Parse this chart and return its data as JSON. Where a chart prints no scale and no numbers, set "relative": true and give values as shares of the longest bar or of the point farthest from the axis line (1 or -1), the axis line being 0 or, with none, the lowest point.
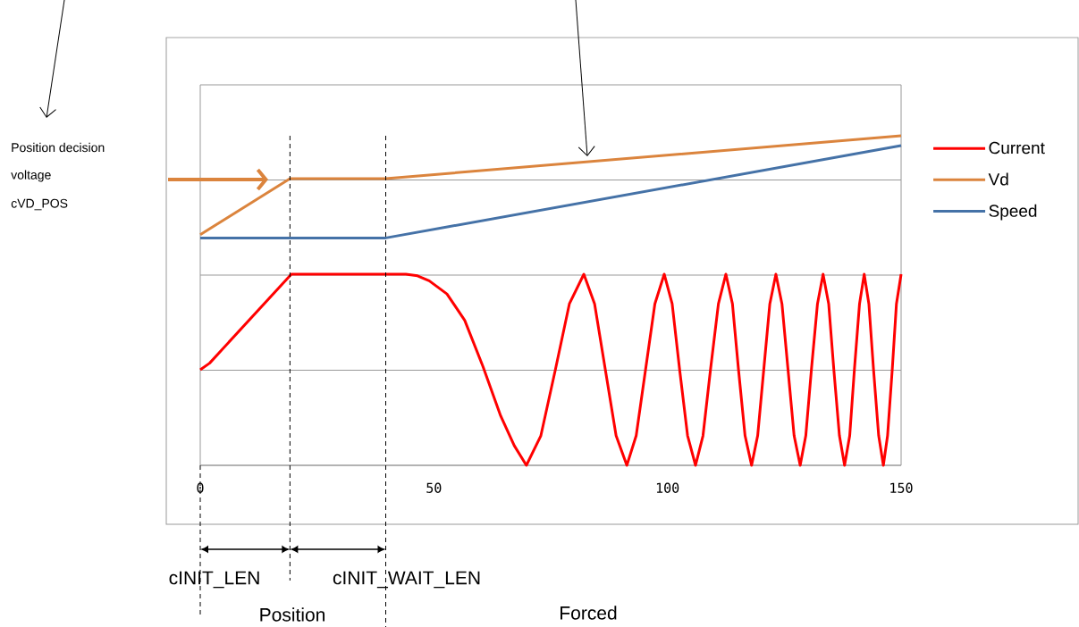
{
  "chart_data": {
    "type": "line",
    "relative": true,
    "xlim": [
      0,
      150
    ],
    "xticks": [
      0,
      50,
      100,
      150
    ],
    "tick_labels": "x",
    "grid": "y",
    "legend": "right",
    "series": [
      {
        "name": "Current",
        "color": "#ff0000",
        "x": [
          0,
          2,
          19.5,
          44,
          46.5,
          49,
          52.8,
          56.6,
          60.5,
          64.3,
          67.2,
          69.8,
          72.9,
          76,
          79.0,
          82.1,
          84.4,
          86.7,
          89.0,
          91.3,
          93.3,
          95.3,
          97.3,
          99.3,
          101.0,
          102.6,
          104.3,
          106.0,
          107.6,
          109.2,
          110.9,
          112.5,
          113.9,
          115.2,
          116.6,
          118.0,
          119.3,
          120.6,
          121.9,
          123.2,
          124.5,
          125.8,
          127.1,
          128.4,
          129.6,
          130.8,
          132.1,
          133.3,
          134.5,
          135.6,
          136.8,
          137.9,
          139.0,
          140.0,
          141.1,
          142.1,
          143.1,
          144.1,
          145.2,
          146.2,
          147.1,
          148.1,
          149.0,
          150
        ],
        "values": [
          0.29,
          0.31,
          0.58,
          0.58,
          0.575,
          0.56,
          0.52,
          0.44,
          0.3,
          0.15,
          0.06,
          0,
          0.09,
          0.29,
          0.49,
          0.58,
          0.49,
          0.29,
          0.09,
          0,
          0.09,
          0.29,
          0.49,
          0.58,
          0.49,
          0.29,
          0.09,
          0,
          0.09,
          0.29,
          0.49,
          0.58,
          0.49,
          0.29,
          0.09,
          0,
          0.09,
          0.29,
          0.49,
          0.58,
          0.49,
          0.29,
          0.09,
          0,
          0.09,
          0.29,
          0.49,
          0.58,
          0.49,
          0.29,
          0.09,
          0,
          0.09,
          0.29,
          0.49,
          0.58,
          0.49,
          0.29,
          0.09,
          0,
          0.09,
          0.29,
          0.49,
          0.58
        ]
      },
      {
        "name": "Vd",
        "color": "#db843d",
        "x": [
          0,
          19.2,
          39.7,
          150
        ],
        "values": [
          0.7,
          0.87,
          0.87,
          1.0
        ]
      },
      {
        "name": "Speed",
        "color": "#4572a7",
        "x": [
          0,
          39.7,
          150
        ],
        "values": [
          0.69,
          0.69,
          0.97
        ]
      }
    ],
    "ref_lines": [
      {
        "axis": "x",
        "value": 19.2,
        "color": "#000000",
        "line_style": "dashed"
      },
      {
        "axis": "x",
        "value": 39.7,
        "color": "#000000",
        "line_style": "dashed"
      }
    ],
    "annotations": [
      "Position decision",
      "voltage",
      "cVD_POS",
      "cINIT_LEN",
      "cINIT_WAIT_LEN",
      "Position",
      "Forced"
    ]
  }
}
